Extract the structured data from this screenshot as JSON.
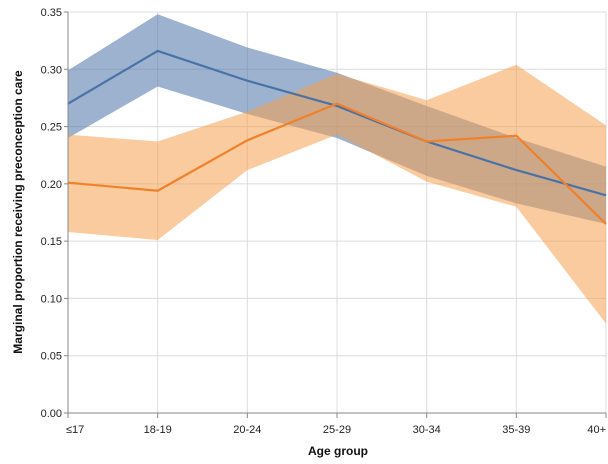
{
  "chart_data": {
    "type": "line",
    "xlabel": "Age group",
    "ylabel": "Marginal proportion receiving preconception care",
    "categories": [
      "≤17",
      "18-19",
      "20-24",
      "25-29",
      "30-34",
      "35-39",
      "40+"
    ],
    "ylim": [
      0,
      0.35
    ],
    "yticks": [
      0.0,
      0.05,
      0.1,
      0.15,
      0.2,
      0.25,
      0.3,
      0.35
    ],
    "ytick_labels": [
      "0.00",
      "0.05",
      "0.10",
      "0.15",
      "0.20",
      "0.25",
      "0.30",
      "0.35"
    ],
    "grid": true,
    "series": [
      {
        "color": "#4a72a8",
        "band_color": "#4a72a8",
        "values": [
          0.27,
          0.316,
          0.29,
          0.268,
          0.237,
          0.212,
          0.19
        ],
        "lower": [
          0.24,
          0.285,
          0.261,
          0.24,
          0.207,
          0.183,
          0.165
        ],
        "upper": [
          0.299,
          0.348,
          0.319,
          0.297,
          0.268,
          0.24,
          0.215
        ]
      },
      {
        "color": "#f0802a",
        "band_color": "#f5a04f",
        "values": [
          0.201,
          0.194,
          0.238,
          0.27,
          0.237,
          0.242,
          0.165
        ],
        "lower": [
          0.158,
          0.151,
          0.212,
          0.243,
          0.202,
          0.18,
          0.078
        ],
        "upper": [
          0.243,
          0.237,
          0.263,
          0.296,
          0.273,
          0.304,
          0.251
        ]
      }
    ]
  }
}
